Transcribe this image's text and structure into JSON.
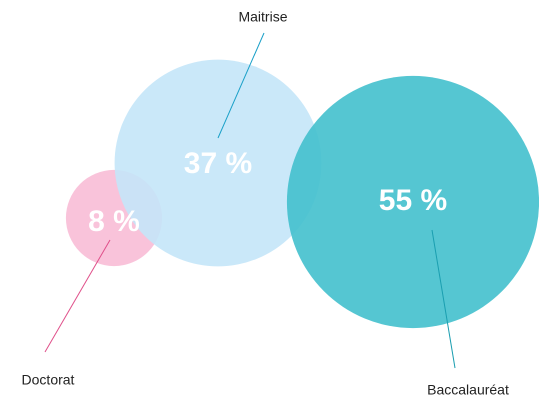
{
  "chart_data": {
    "type": "bubble",
    "categories": [
      "Doctorat",
      "Maitrise",
      "Baccalauréat"
    ],
    "values": [
      8,
      37,
      55
    ],
    "value_labels": [
      "8 %",
      "37 %",
      "55 %"
    ],
    "colors": [
      "#f8bcd6",
      "#c4e6f8",
      "#43c0cd"
    ],
    "line_colors": [
      "#e0508a",
      "#1aa0c8",
      "#1a9eb0"
    ]
  }
}
